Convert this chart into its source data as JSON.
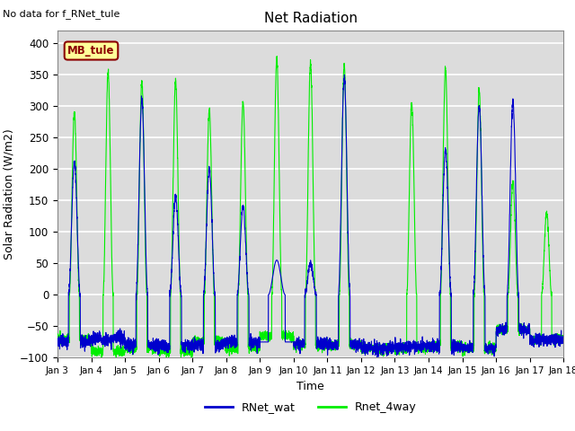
{
  "title": "Net Radiation",
  "xlabel": "Time",
  "ylabel": "Solar Radiation (W/m2)",
  "ylim": [
    -100,
    420
  ],
  "yticks": [
    -100,
    -50,
    0,
    50,
    100,
    150,
    200,
    250,
    300,
    350,
    400
  ],
  "xtick_labels": [
    "Jan 3",
    "Jan 4",
    "Jan 5",
    "Jan 6",
    "Jan 7",
    "Jan 8",
    "Jan 9",
    "Jan 10",
    "Jan 11",
    "Jan 12",
    "Jan 13",
    "Jan 14",
    "Jan 15",
    "Jan 16",
    "Jan 17",
    "Jan 18"
  ],
  "color_blue": "#0000CC",
  "color_green": "#00EE00",
  "line_width": 0.8,
  "legend_labels": [
    "RNet_wat",
    "Rnet_4way"
  ],
  "annotation_text": "No data for f_RNet_tule",
  "legend_box_text": "MB_tule",
  "legend_box_color": "#FFFF99",
  "legend_box_border": "#8B0000",
  "bg_color": "#DCDCDC",
  "grid_color": "white",
  "num_days": 15,
  "pts_per_day": 288
}
